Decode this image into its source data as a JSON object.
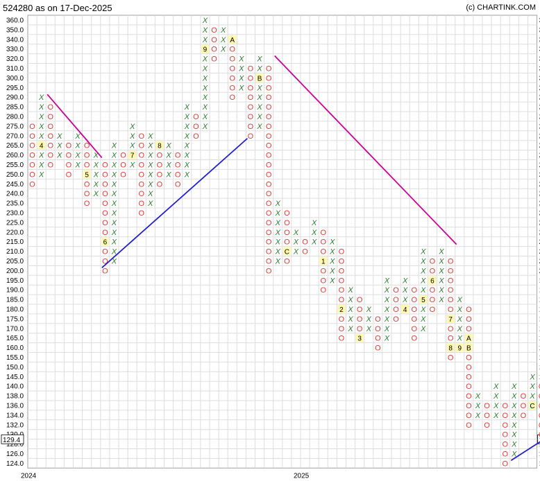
{
  "header": {
    "title": "524280 as on 17-Dec-2025",
    "credit": "(c) CHARTINK.COM"
  },
  "chart_data": {
    "type": "point-and-figure",
    "price_levels": [
      124,
      126,
      128,
      129.4,
      130,
      132,
      134,
      136,
      138,
      140,
      145,
      150,
      155,
      160,
      165,
      170,
      175,
      180,
      185,
      190,
      195,
      200,
      205,
      210,
      215,
      220,
      225,
      230,
      235,
      240,
      245,
      250,
      255,
      260,
      265,
      270,
      275,
      280,
      285,
      290,
      295,
      300,
      310,
      320,
      330,
      340,
      350,
      360
    ],
    "tick_labels": [
      "360.0",
      "350.0",
      "340.0",
      "330.0",
      "320.0",
      "310.0",
      "300.0",
      "295.0",
      "290.0",
      "285.0",
      "280.0",
      "275.0",
      "270.0",
      "265.0",
      "260.0",
      "255.0",
      "250.0",
      "245.0",
      "240.0",
      "235.0",
      "230.0",
      "225.0",
      "220.0",
      "215.0",
      "210.0",
      "205.0",
      "200.0",
      "195.0",
      "190.0",
      "185.0",
      "180.0",
      "175.0",
      "170.0",
      "165.0",
      "160.0",
      "155.0",
      "150.0",
      "145.0",
      "140.0",
      "138.0",
      "136.0",
      "134.0",
      "132.0",
      "130.0",
      "128.0",
      "126.0",
      "124.0"
    ],
    "current_price": "129.4",
    "x_labels": [
      {
        "text": "2024",
        "col": 0
      },
      {
        "text": "2025",
        "col": 30
      }
    ],
    "columns": [
      {
        "type": "O",
        "from": "245.0",
        "to": "275.0"
      },
      {
        "type": "X",
        "from": "250.0",
        "to": "290.0",
        "marks": {
          "265.0": "4"
        }
      },
      {
        "type": "O",
        "from": "255.0",
        "to": "285.0"
      },
      {
        "type": "X",
        "from": "260.0",
        "to": "270.0"
      },
      {
        "type": "O",
        "from": "250.0",
        "to": "265.0"
      },
      {
        "type": "X",
        "from": "255.0",
        "to": "270.0"
      },
      {
        "type": "O",
        "from": "235.0",
        "to": "265.0",
        "marks": {
          "250.0": "5"
        }
      },
      {
        "type": "X",
        "from": "240.0",
        "to": "260.0"
      },
      {
        "type": "O",
        "from": "200.0",
        "to": "255.0",
        "marks": {
          "215.0": "6"
        }
      },
      {
        "type": "X",
        "from": "205.0",
        "to": "265.0"
      },
      {
        "type": "O",
        "from": "250.0",
        "to": "260.0"
      },
      {
        "type": "X",
        "from": "255.0",
        "to": "275.0",
        "marks": {
          "260.0": "7"
        }
      },
      {
        "type": "O",
        "from": "230.0",
        "to": "270.0"
      },
      {
        "type": "X",
        "from": "235.0",
        "to": "270.0"
      },
      {
        "type": "O",
        "from": "245.0",
        "to": "265.0",
        "marks": {
          "265.0": "8"
        }
      },
      {
        "type": "X",
        "from": "250.0",
        "to": "265.0"
      },
      {
        "type": "O",
        "from": "245.0",
        "to": "260.0"
      },
      {
        "type": "X",
        "from": "250.0",
        "to": "285.0"
      },
      {
        "type": "O",
        "from": "270.0",
        "to": "280.0"
      },
      {
        "type": "X",
        "from": "275.0",
        "to": "360.0",
        "marks": {
          "330.0": "9"
        }
      },
      {
        "type": "O",
        "from": "320.0",
        "to": "350.0"
      },
      {
        "type": "X",
        "from": "330.0",
        "to": "350.0"
      },
      {
        "type": "O",
        "from": "290.0",
        "to": "340.0",
        "marks": {
          "340.0": "A"
        }
      },
      {
        "type": "X",
        "from": "295.0",
        "to": "320.0"
      },
      {
        "type": "O",
        "from": "270.0",
        "to": "310.0"
      },
      {
        "type": "X",
        "from": "275.0",
        "to": "320.0",
        "marks": {
          "300.0": "B"
        }
      },
      {
        "type": "O",
        "from": "200.0",
        "to": "310.0"
      },
      {
        "type": "X",
        "from": "205.0",
        "to": "235.0"
      },
      {
        "type": "O",
        "from": "205.0",
        "to": "230.0",
        "marks": {
          "210.0": "C"
        }
      },
      {
        "type": "X",
        "from": "210.0",
        "to": "220.0"
      },
      {
        "type": "O",
        "from": "210.0",
        "to": "215.0"
      },
      {
        "type": "X",
        "from": "215.0",
        "to": "225.0"
      },
      {
        "type": "O",
        "from": "190.0",
        "to": "220.0",
        "marks": {
          "205.0": "1"
        }
      },
      {
        "type": "X",
        "from": "195.0",
        "to": "215.0"
      },
      {
        "type": "O",
        "from": "165.0",
        "to": "210.0",
        "marks": {
          "180.0": "2"
        }
      },
      {
        "type": "X",
        "from": "170.0",
        "to": "190.0"
      },
      {
        "type": "O",
        "from": "165.0",
        "to": "185.0",
        "marks": {
          "165.0": "3"
        }
      },
      {
        "type": "X",
        "from": "170.0",
        "to": "180.0"
      },
      {
        "type": "O",
        "from": "160.0",
        "to": "175.0"
      },
      {
        "type": "X",
        "from": "165.0",
        "to": "195.0"
      },
      {
        "type": "O",
        "from": "175.0",
        "to": "190.0"
      },
      {
        "type": "X",
        "from": "180.0",
        "to": "195.0",
        "marks": {
          "180.0": "4"
        }
      },
      {
        "type": "O",
        "from": "165.0",
        "to": "190.0"
      },
      {
        "type": "X",
        "from": "170.0",
        "to": "210.0",
        "marks": {
          "185.0": "5"
        }
      },
      {
        "type": "O",
        "from": "180.0",
        "to": "205.0",
        "marks": {
          "195.0": "6"
        }
      },
      {
        "type": "X",
        "from": "185.0",
        "to": "210.0"
      },
      {
        "type": "O",
        "from": "155.0",
        "to": "205.0",
        "marks": {
          "175.0": "7",
          "160.0": "8"
        }
      },
      {
        "type": "X",
        "from": "160.0",
        "to": "185.0",
        "marks": {
          "160.0": "9"
        }
      },
      {
        "type": "O",
        "from": "132.0",
        "to": "180.0",
        "marks": {
          "165.0": "A",
          "160.0": "B"
        }
      },
      {
        "type": "X",
        "from": "134.0",
        "to": "138.0"
      },
      {
        "type": "O",
        "from": "132.0",
        "to": "136.0"
      },
      {
        "type": "X",
        "from": "134.0",
        "to": "140.0"
      },
      {
        "type": "O",
        "from": "124.0",
        "to": "136.0"
      },
      {
        "type": "X",
        "from": "126.0",
        "to": "140.0"
      },
      {
        "type": "O",
        "from": "134.0",
        "to": "138.0"
      },
      {
        "type": "X",
        "from": "136.0",
        "to": "145.0",
        "marks": {
          "136.0": "C"
        }
      },
      {
        "type": "O",
        "from": "130.0",
        "to": "140.0"
      }
    ],
    "trendlines": [
      {
        "name": "resistance",
        "color": "#cc0099",
        "from": {
          "col": 2,
          "level": "290.0"
        },
        "to": {
          "col": 8,
          "level": "260.0"
        }
      },
      {
        "name": "support",
        "color": "#1f1fcc",
        "from": {
          "col": 8,
          "level": "200.0"
        },
        "to": {
          "col": 24,
          "level": "270.0"
        }
      },
      {
        "name": "resistance",
        "color": "#cc0099",
        "from": {
          "col": 27,
          "level": "320.0"
        },
        "to": {
          "col": 47,
          "level": "215.0"
        }
      },
      {
        "name": "support",
        "color": "#1f1fcc",
        "from": {
          "col": 53,
          "level": "124.0"
        },
        "to": {
          "col": 57,
          "level": "130.0"
        }
      }
    ]
  }
}
